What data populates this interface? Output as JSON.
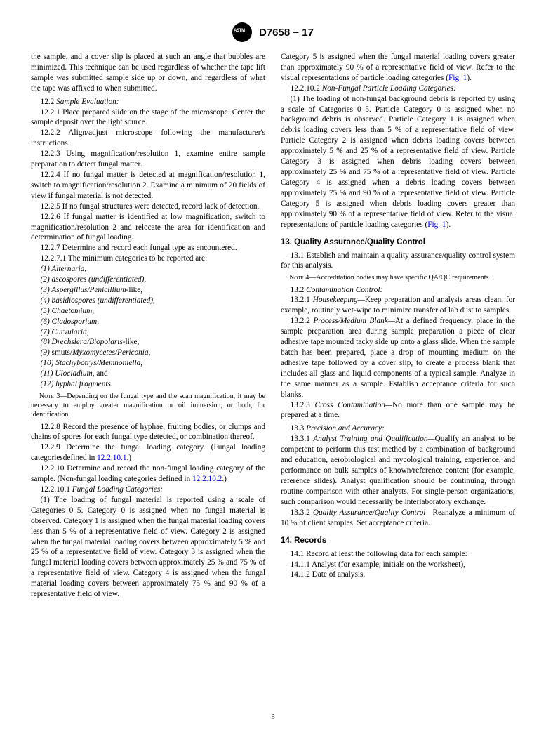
{
  "header": {
    "standard": "D7658 − 17"
  },
  "col1": {
    "intro": "the sample, and a cover slip is placed at such an angle that bubbles are minimized. This technique can be used regardless of whether the tape lift sample was submitted sample side up or down, and regardless of what the tape was affixed to when submitted.",
    "s12_2_hd": "12.2 ",
    "s12_2_it": "Sample Evaluation:",
    "s12_2_1": "12.2.1 Place prepared slide on the stage of the microscope. Center the sample deposit over the light source.",
    "s12_2_2": "12.2.2 Align/adjust microscope following the manufacturer's instructions.",
    "s12_2_3": "12.2.3 Using magnification/resolution 1, examine entire sample preparation to detect fungal matter.",
    "s12_2_4": "12.2.4 If no fungal matter is detected at magnification/resolution 1, switch to magnification/resolution 2. Examine a minimum of 20 fields of view if fungal material is not detected.",
    "s12_2_5": "12.2.5 If no fungal structures were detected, record lack of detection.",
    "s12_2_6": "12.2.6 If fungal matter is identified at low magnification, switch to magnification/resolution 2 and relocate the area for identification and determination of fungal loading.",
    "s12_2_7": "12.2.7 Determine and record each fungal type as encountered.",
    "s12_2_7_1": "12.2.7.1 The minimum categories to be reported are:",
    "cat1": "(1) Alternaria",
    "cat2": "(2) ascospores (undifferentiated),",
    "cat3": "(3) Aspergillus/Penicillium",
    "cat3b": "-like,",
    "cat4": "(4) basidiospores (undifferentiated),",
    "cat5": "(5) Chaetomium",
    "cat6": "(6) Cladosporium",
    "cat7": "(7) Curvularia",
    "cat8": "(8) Drechslera/Biopolaris",
    "cat8b": "-like,",
    "cat9a": "(9) ",
    "cat9b": "smuts/",
    "cat9c": "Myxomycetes/Periconia",
    "cat10": "(10) Stachybotrys/Memnoniella",
    "cat11": "(11) Ulocladium",
    "cat11b": ", and",
    "cat12": "(12) hyphal fragments.",
    "note3lbl": "Note",
    "note3": " 3—Depending on the fungal type and the scan magnification, it may be necessary to employ greater magnification or oil immersion, or both, for identification.",
    "s12_2_8": "12.2.8 Record the presence of hyphae, fruiting bodies, or clumps and chains of spores for each fungal type detected, or combination thereof.",
    "s12_2_9a": "12.2.9 Determine the fungal loading category. (Fungal loading categoriesdefined in ",
    "s12_2_9b": "12.2.10.1",
    "s12_2_9c": ".)",
    "s12_2_10a": "12.2.10 Determine and record the non-fungal loading category of the sample. (Non-fungal loading categories defined in ",
    "s12_2_10b": "12.2.10.2",
    "s12_2_10c": ".)",
    "s12_2_10_1_hd": "12.2.10.1 ",
    "s12_2_10_1_it": "Fungal Loading Categories:",
    "flc_a": "(1) The loading of fungal material is reported using a scale of Categories 0–5. Category 0 is assigned when no fungal material is observed. Category 1 is assigned when the fungal material loading covers less than 5 % of a representative field of view. Category 2 is assigned when the fungal material loading covers between approximately 5 % and 25 % of a representative field of view. Category 3 is assigned when the fungal material loading covers between approximately 25 % and 75 % of a representative field of view. Category 4 is assigned when the fungal material loading covers between approximately 75 % and 90 % of a representative field of view."
  },
  "col2": {
    "flc_b1": "Category 5 is assigned when the fungal material loading covers greater than approximately 90 % of a representative field of view. Refer to the visual representations of particle loading categories (",
    "fig1a": "Fig. 1",
    "flc_b2": ").",
    "s12_2_10_2_hd": "12.2.10.2 ",
    "s12_2_10_2_it": "Non-Fungal Particle Loading Categories:",
    "nflc_a": "(1) The loading of non-fungal background debris is reported by using a scale of Categories 0–5. Particle Category 0 is assigned when no background debris is observed. Particle Category 1 is assigned when debris loading covers less than 5 % of a representative field of view. Particle Category 2 is assigned when debris loading covers between approximately 5 % and 25 % of a representative field of view. Particle Category 3 is assigned when debris loading covers between approximately 25 % and 75 % of a representative field of view. Particle Category 4 is assigned when a debris loading covers between approximately 75 % and 90 % of a representative field of view. Particle Category 5 is assigned when debris loading covers greater than approximately 90 % of a representative field of view. Refer to the visual representations of particle loading categories (",
    "fig1b": "Fig. 1",
    "nflc_b": ").",
    "h13": "13. Quality Assurance/Quality Control",
    "s13_1": "13.1 Establish and maintain a quality assurance/quality control system for this analysis.",
    "note4lbl": "Note",
    "note4": " 4—Accreditation bodies may have specific QA/QC requirements.",
    "s13_2_hd": "13.2 ",
    "s13_2_it": "Contamination Control:",
    "s13_2_1_hd": "13.2.1 ",
    "s13_2_1_it": "Housekeeping—",
    "s13_2_1": "Keep preparation and analysis areas clean, for example, routinely wet-wipe to minimize transfer of lab dust to samples.",
    "s13_2_2_hd": "13.2.2 ",
    "s13_2_2_it": "Process/Medium Blank—",
    "s13_2_2": "At a defined frequency, place in the sample preparation area during sample preparation a piece of clear adhesive tape mounted tacky side up onto a glass slide. When the sample batch has been prepared, place a drop of mounting medium on the adhesive tape followed by a cover slip, to create a process blank that includes all glass and liquid components of a typical sample. Analyze in the same manner as a sample. Establish acceptance criteria for such blanks.",
    "s13_2_3_hd": "13.2.3 ",
    "s13_2_3_it": "Cross Contamination—",
    "s13_2_3": "No more than one sample may be prepared at a time.",
    "s13_3_hd": "13.3 ",
    "s13_3_it": "Precision and Accuracy:",
    "s13_3_1_hd": "13.3.1 ",
    "s13_3_1_it": "Analyst Training and Qualification—",
    "s13_3_1": "Qualify an analyst to be competent to perform this test method by a combination of background and education, aerobiological and mycological training, experience, and performance on bulk samples of known/reference content (for example, reference slides). Analyst qualification should be continuing, through routine comparison with other analysts. For single-person organizations, such comparison would necessarily be interlaboratory exchange.",
    "s13_3_2_hd": "13.3.2 ",
    "s13_3_2_it": "Quality Assurance/Quality Control—",
    "s13_3_2": "Reanalyze a minimum of 10 % of client samples. Set acceptance criteria.",
    "h14": "14. Records",
    "s14_1": "14.1 Record at least the following data for each sample:",
    "s14_1_1": "14.1.1 Analyst (for example, initials on the worksheet),",
    "s14_1_2": "14.1.2 Date of analysis."
  },
  "pagenum": "3"
}
